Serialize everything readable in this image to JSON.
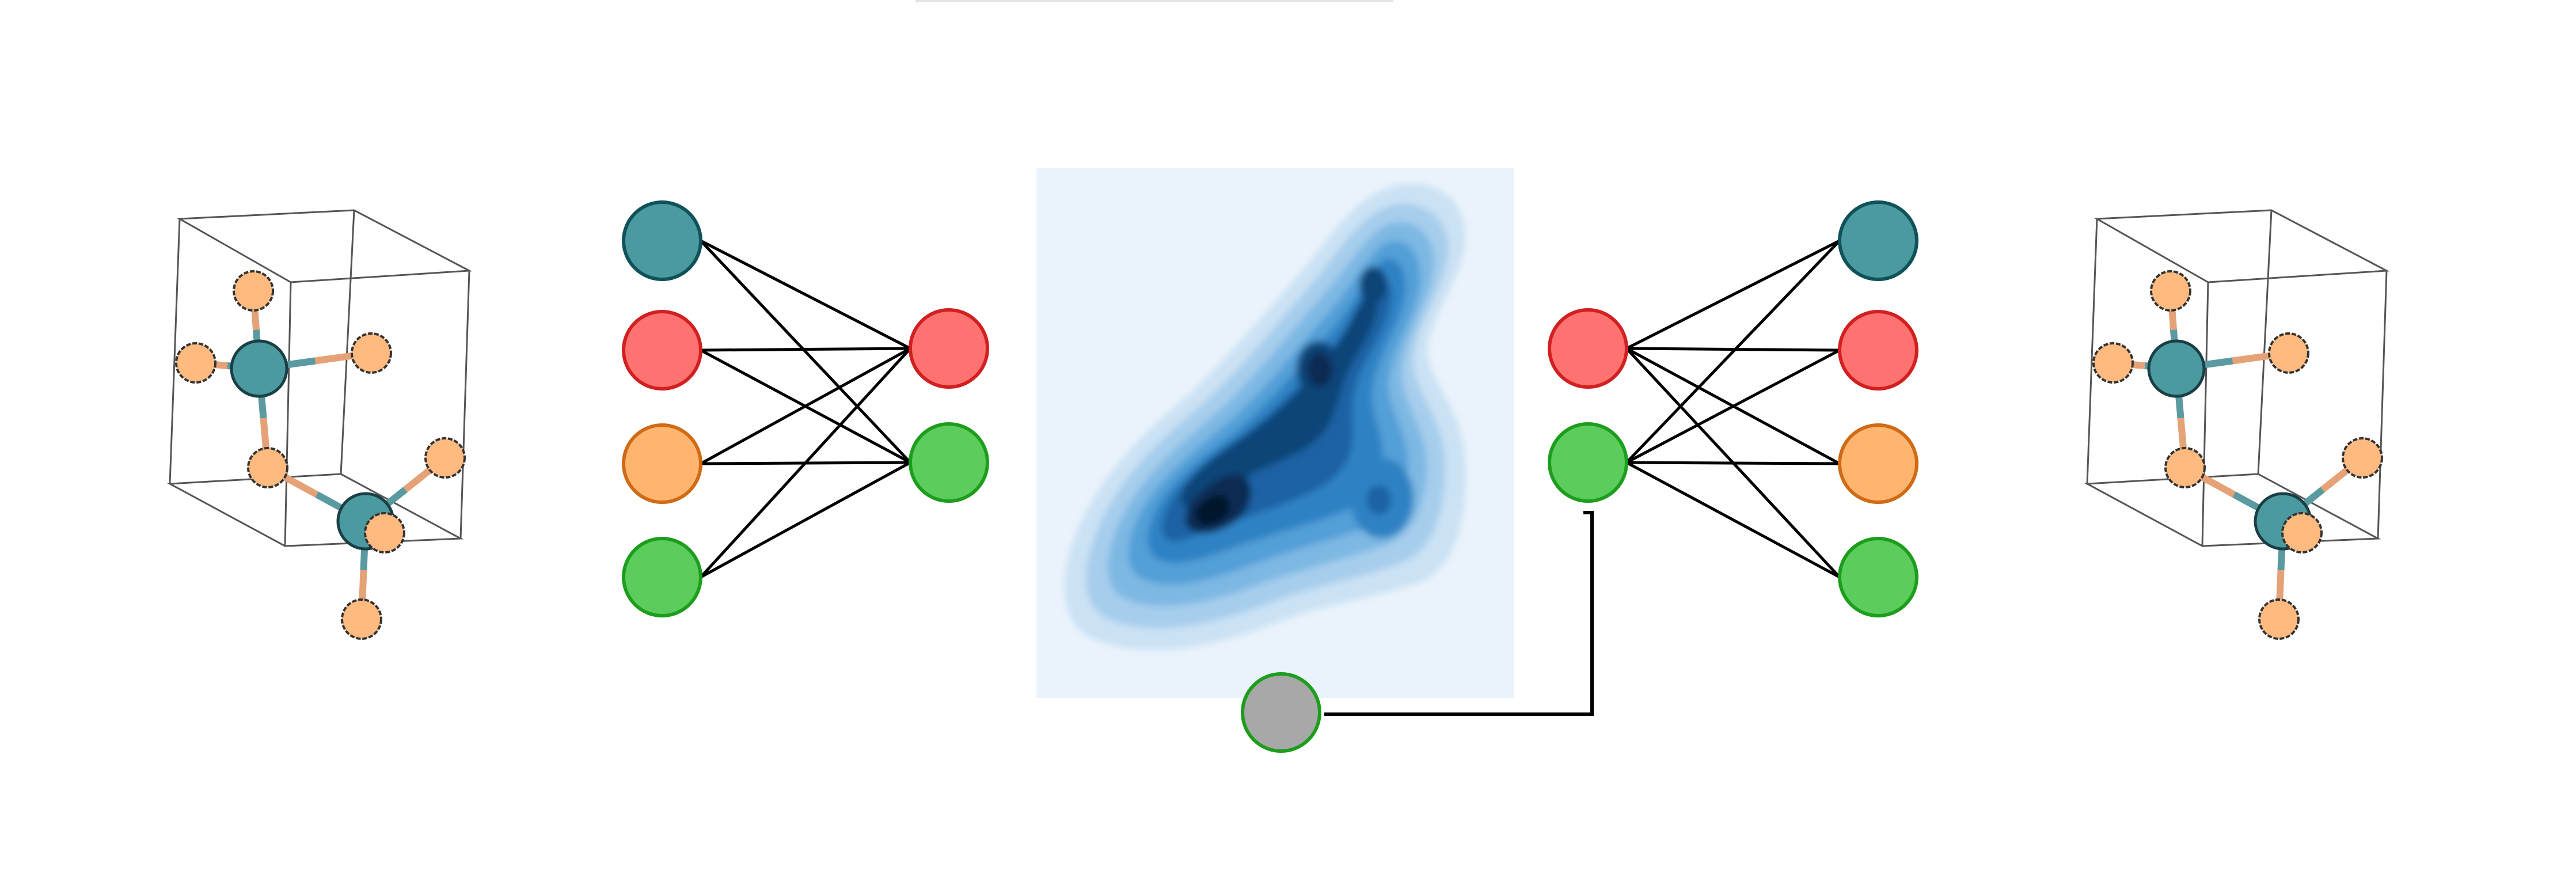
{
  "colors": {
    "teal_fill": "#4a9aa0",
    "teal_stroke": "#0f525a",
    "red_fill": "#ff7272",
    "red_stroke": "#d21f1f",
    "orange_fill": "#ffb570",
    "orange_stroke": "#d06a14",
    "green_fill": "#5ccc5c",
    "green_stroke": "#1c9e1c",
    "gray_fill": "#a8a8a8",
    "atom_orange": "#ffba80",
    "density_background": "#eaf3fb",
    "density_levels": [
      "#cbe2f4",
      "#a6cdec",
      "#7db8e3",
      "#539fd7",
      "#2f82c4",
      "#1c62a4",
      "#104478",
      "#0a2c52",
      "#04142a"
    ]
  },
  "encoder_nodes": {
    "inputs": [
      "teal",
      "red",
      "orange",
      "green"
    ],
    "latent": [
      "red",
      "green"
    ]
  },
  "decoder_nodes": {
    "latent": [
      "red",
      "green"
    ],
    "outputs": [
      "teal",
      "red",
      "orange",
      "green"
    ]
  },
  "condition_node": "gray",
  "icons": [
    "crystal-structure-icon",
    "density-map-icon"
  ]
}
